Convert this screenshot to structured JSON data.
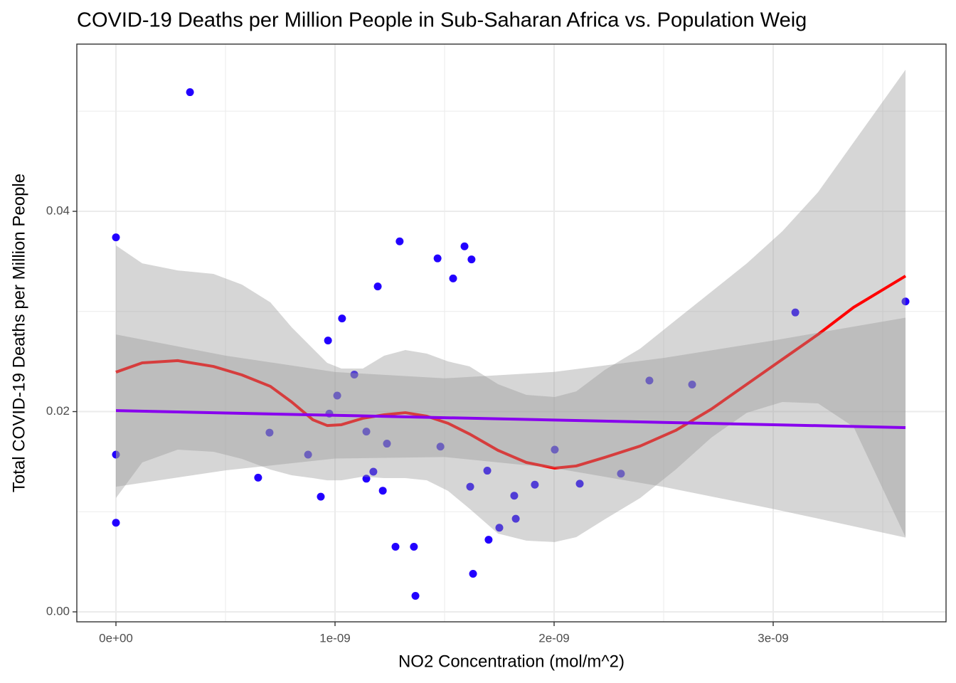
{
  "chart_data": {
    "type": "scatter",
    "title": "COVID-19 Deaths per Million People in Sub-Saharan Africa vs. Population Weig",
    "x_label": "NO2 Concentration (mol/m^2)",
    "y_label": "Total COVID-19 Deaths per Million People",
    "xlim": [
      -1.786e-10,
      3.789e-09
    ],
    "ylim": [
      -0.000995,
      0.0567
    ],
    "xticks": [
      {
        "value": 0,
        "label": "0e+00"
      },
      {
        "value": 1e-09,
        "label": "1e-09"
      },
      {
        "value": 2e-09,
        "label": "2e-09"
      },
      {
        "value": 3e-09,
        "label": "3e-09"
      }
    ],
    "yticks": [
      {
        "value": 0,
        "label": "0.00"
      },
      0.02,
      0.04
    ],
    "x_minor_grid": [
      5e-10,
      1.5e-09,
      2.5e-09,
      3.5e-09
    ],
    "y_minor_grid": [
      0.01,
      0.03,
      0.05
    ],
    "grid": true,
    "series": [
      {
        "color": "#2200ff",
        "x": [
          3.38e-10,
          0,
          0,
          0,
          6.49e-10,
          7.01e-10,
          8.77e-10,
          9.35e-10,
          9.68e-10,
          9.74e-10,
          1.01e-09,
          1.032e-09,
          1.088e-09,
          1.143e-09,
          1.143e-09,
          1.175e-09,
          1.195e-09,
          1.218e-09,
          1.237e-09,
          1.276e-09,
          1.295e-09,
          1.36e-09,
          1.367e-09,
          1.468e-09,
          1.481e-09,
          1.539e-09,
          1.591e-09,
          1.617e-09,
          1.623e-09,
          1.63e-09,
          1.695e-09,
          1.701e-09,
          1.75e-09,
          1.818e-09,
          1.825e-09,
          1.912e-09,
          2.003e-09,
          2.117e-09,
          2.305e-09,
          2.435e-09,
          2.63e-09,
          3.101e-09,
          3.604e-09
        ],
        "values": [
          0.0519,
          0.0374,
          0.0157,
          0.0089,
          0.0134,
          0.0179,
          0.0157,
          0.0115,
          0.0271,
          0.0198,
          0.0216,
          0.0293,
          0.0237,
          0.018,
          0.0133,
          0.014,
          0.0325,
          0.0121,
          0.0168,
          0.0065,
          0.037,
          0.0065,
          0.0016,
          0.0353,
          0.0165,
          0.0333,
          0.0365,
          0.0125,
          0.0352,
          0.0038,
          0.0141,
          0.0072,
          0.0084,
          0.0116,
          0.0093,
          0.0127,
          0.0162,
          0.0128,
          0.0138,
          0.0231,
          0.0227,
          0.0299,
          0.031
        ]
      }
    ],
    "fit_lines": [
      {
        "color": "#ff0000",
        "band_color": "rgba(153,153,153,0.4)",
        "x": [
          0,
          1.2e-10,
          2.82e-10,
          4.45e-10,
          5.75e-10,
          7.05e-10,
          8.02e-10,
          8.99e-10,
          9.64e-10,
          1.029e-09,
          1.127e-09,
          1.224e-09,
          1.321e-09,
          1.419e-09,
          1.516e-09,
          1.614e-09,
          1.744e-09,
          1.873e-09,
          2.003e-09,
          2.101e-09,
          2.231e-09,
          2.393e-09,
          2.555e-09,
          2.718e-09,
          2.88e-09,
          3.042e-09,
          3.205e-09,
          3.367e-09,
          3.604e-09
        ],
        "values": [
          0.02394,
          0.02487,
          0.02509,
          0.02451,
          0.02366,
          0.02252,
          0.02096,
          0.01918,
          0.01861,
          0.01869,
          0.01933,
          0.01968,
          0.01989,
          0.01954,
          0.01883,
          0.01776,
          0.01613,
          0.01492,
          0.01435,
          0.01457,
          0.01542,
          0.01656,
          0.01812,
          0.02025,
          0.02274,
          0.02522,
          0.02771,
          0.03041,
          0.03354
        ],
        "band_upper": [
          0.03659,
          0.03481,
          0.0341,
          0.03375,
          0.03268,
          0.03091,
          0.02842,
          0.02629,
          0.02487,
          0.0243,
          0.0243,
          0.02558,
          0.02615,
          0.02579,
          0.02501,
          0.02451,
          0.02274,
          0.02167,
          0.02146,
          0.02202,
          0.02416,
          0.02629,
          0.02913,
          0.03197,
          0.03481,
          0.03801,
          0.04192,
          0.04689,
          0.05414
        ],
        "band_lower": [
          0.01137,
          0.01492,
          0.0162,
          0.01599,
          0.01528,
          0.01421,
          0.01364,
          0.01336,
          0.01314,
          0.01314,
          0.0135,
          0.01336,
          0.01336,
          0.01314,
          0.01208,
          0.0103,
          0.00782,
          0.00711,
          0.00697,
          0.00746,
          0.00924,
          0.01137,
          0.01421,
          0.01741,
          0.01989,
          0.02096,
          0.02082,
          0.01847,
          0.00746
        ]
      },
      {
        "color": "#8800ee",
        "band_color": "rgba(153,153,153,0.4)",
        "x": [
          0,
          5e-10,
          1e-09,
          1.5e-09,
          2e-09,
          2.5e-09,
          3e-09,
          3.604e-09
        ],
        "values": [
          0.0201,
          0.01986,
          0.01963,
          0.01939,
          0.01916,
          0.01892,
          0.01869,
          0.0184
        ],
        "band_upper": [
          0.0277,
          0.02559,
          0.02395,
          0.02332,
          0.02396,
          0.02536,
          0.0271,
          0.02938
        ],
        "band_lower": [
          0.0125,
          0.01413,
          0.01531,
          0.01546,
          0.01436,
          0.01248,
          0.01028,
          0.00742
        ]
      }
    ]
  }
}
